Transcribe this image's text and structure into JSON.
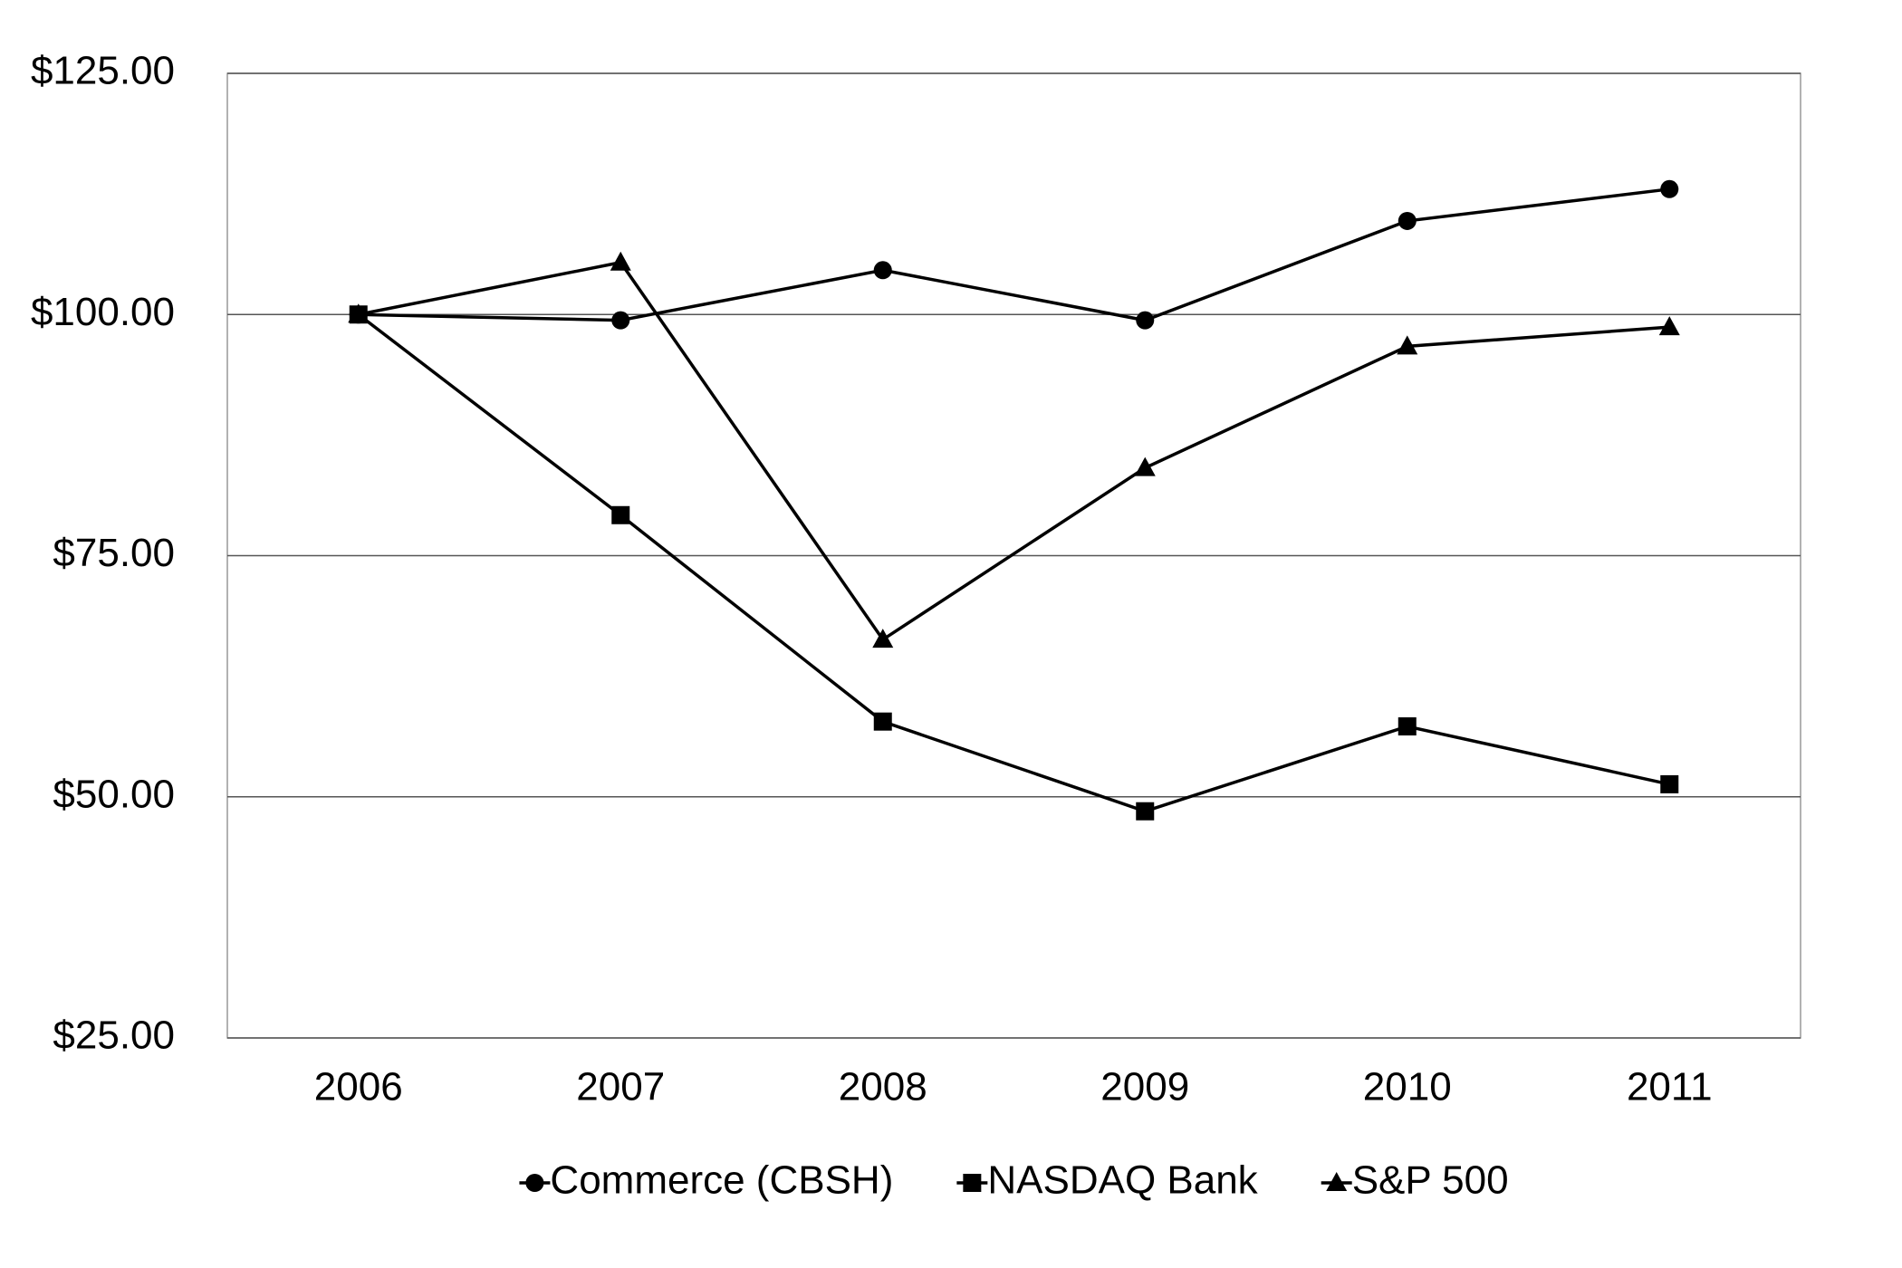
{
  "chart_data": {
    "type": "line",
    "categories": [
      "2006",
      "2007",
      "2008",
      "2009",
      "2010",
      "2011"
    ],
    "series": [
      {
        "name": "Commerce (CBSH)",
        "color": "#000000",
        "marker": "circle",
        "values": [
          100,
          99.4,
          104.6,
          99.4,
          109.7,
          113.0
        ]
      },
      {
        "name": "NASDAQ Bank",
        "color": "#000000",
        "marker": "square",
        "values": [
          100,
          79.2,
          57.8,
          48.5,
          57.3,
          51.3
        ]
      },
      {
        "name": "S&P 500",
        "color": "#000000",
        "marker": "triangle",
        "values": [
          100,
          105.4,
          66.3,
          84.1,
          96.7,
          98.7
        ]
      }
    ],
    "ylim": [
      25,
      125
    ],
    "yticks": [
      {
        "value": 25,
        "label": "$25.00"
      },
      {
        "value": 50,
        "label": "$50.00"
      },
      {
        "value": 75,
        "label": "$75.00"
      },
      {
        "value": 100,
        "label": "$100.00"
      },
      {
        "value": 125,
        "label": "$125.00"
      }
    ],
    "grid": true,
    "legend": "bottom"
  }
}
